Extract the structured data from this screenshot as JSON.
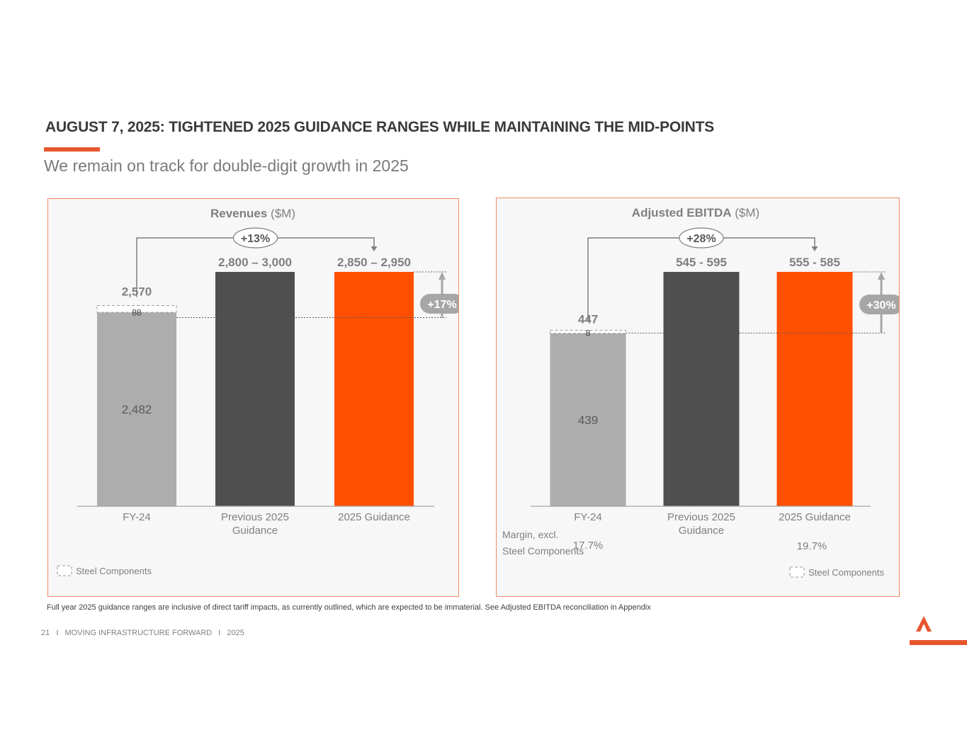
{
  "slide": {
    "title": "AUGUST 7, 2025: TIGHTENED 2025 GUIDANCE RANGES WHILE MAINTAINING THE MID-POINTS",
    "subtitle": "We remain on track for double-digit growth in 2025",
    "footnote": "Full year 2025 guidance ranges are inclusive of direct tariff impacts, as currently outlined, which are expected to be immaterial.  See Adjusted EBITDA reconciliation in Appendix",
    "footer": {
      "page": "21",
      "sep1": "I",
      "tagline": "MOVING INFRASTRUCTURE FORWARD",
      "sep2": "I",
      "year": "2025"
    },
    "logo_icon": "company-logo-icon"
  },
  "colors": {
    "accent": "#e8562e",
    "fy24": "#adadad",
    "previous": "#4f4f4f",
    "guidance": "#fe5000",
    "panel_border": "#ef8a65"
  },
  "chart_data": [
    {
      "type": "bar",
      "title": "Revenues",
      "title_unit": "($M)",
      "categories": [
        "FY-24",
        "Previous 2025 Guidance",
        "2025 Guidance"
      ],
      "category_lines": [
        [
          "FY-24"
        ],
        [
          "Previous 2025",
          "Guidance"
        ],
        [
          "2025 Guidance"
        ]
      ],
      "bars": [
        {
          "kind": "stacked",
          "base": 2482,
          "base_label": "2,482",
          "steel": 88,
          "steel_label": "88",
          "total_label": "2,570"
        },
        {
          "kind": "range",
          "low": 2800,
          "high": 3000,
          "label": "2,800 – 3,000"
        },
        {
          "kind": "range",
          "low": 2850,
          "high": 2950,
          "label": "2,850 – 2,950"
        }
      ],
      "growth_bracket": "+13%",
      "growth_arrow": "+17%",
      "legend": "Steel Components",
      "legend_position": "bottom-left",
      "margins": null
    },
    {
      "type": "bar",
      "title": "Adjusted EBITDA",
      "title_unit": "($M)",
      "categories": [
        "FY-24",
        "Previous 2025 Guidance",
        "2025 Guidance"
      ],
      "category_lines": [
        [
          "FY-24"
        ],
        [
          "Previous 2025",
          "Guidance"
        ],
        [
          "2025 Guidance"
        ]
      ],
      "bars": [
        {
          "kind": "stacked",
          "base": 439,
          "base_label": "439",
          "steel": 8,
          "steel_label": "8",
          "total_label": "447"
        },
        {
          "kind": "range",
          "low": 545,
          "high": 595,
          "label": "545 - 595"
        },
        {
          "kind": "range",
          "low": 555,
          "high": 585,
          "label": "555 - 585"
        }
      ],
      "growth_bracket": "+28%",
      "growth_arrow": "+30%",
      "legend": "Steel Components",
      "legend_position": "bottom-right",
      "margins": {
        "label_lines": [
          "Margin, excl.",
          "Steel Components"
        ],
        "fy24": "17.7%",
        "guidance": "19.7%"
      }
    }
  ]
}
